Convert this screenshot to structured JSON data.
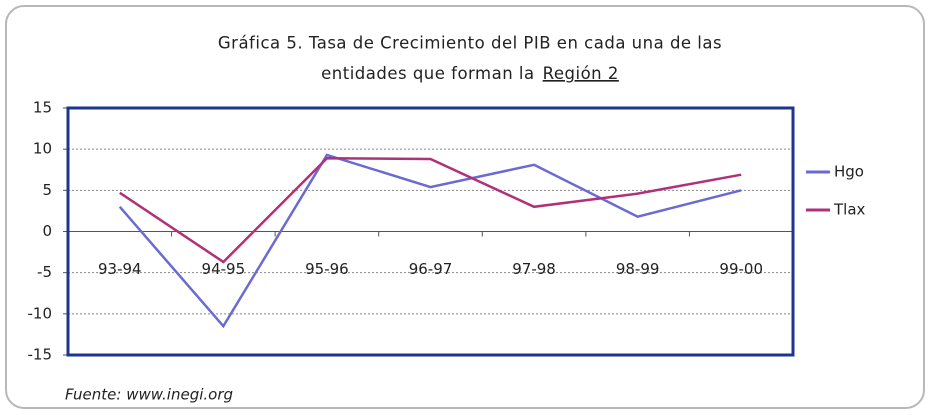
{
  "chart_data": {
    "type": "line",
    "title": [
      "Gráfica 5. Tasa de Crecimiento del PIB en cada una de las",
      "entidades que forman la",
      "Región 2"
    ],
    "source": "Fuente: www.inegi.org",
    "categories": [
      "93-94",
      "94-95",
      "95-96",
      "96-97",
      "97-98",
      "98-99",
      "99-00"
    ],
    "series": [
      {
        "name": "Hgo",
        "color": "#6a6ad2",
        "values": [
          3,
          -11.5,
          9.3,
          5.4,
          8.1,
          1.8,
          5.0
        ]
      },
      {
        "name": "Tlax",
        "color": "#b0307a",
        "values": [
          4.7,
          -3.7,
          8.9,
          8.8,
          3.0,
          4.6,
          6.9
        ]
      }
    ],
    "ylim": [
      -15,
      15
    ],
    "yticks": [
      -15,
      -10,
      -5,
      0,
      5,
      10,
      15
    ],
    "grid": true,
    "legend": "right"
  }
}
